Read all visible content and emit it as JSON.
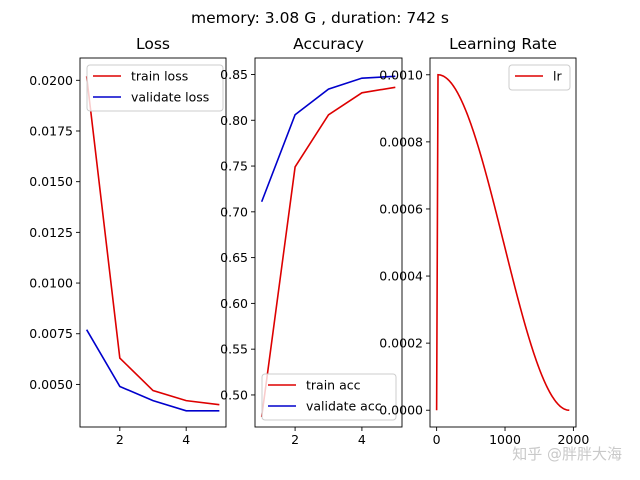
{
  "figure": {
    "suptitle": "memory: 3.08 G , duration: 742 s",
    "watermark": "知乎 @胖胖大海"
  },
  "chart_data": [
    {
      "type": "line",
      "title": "Loss",
      "xlabel": "",
      "ylabel": "",
      "xlim": [
        0.8,
        5.2
      ],
      "ylim": [
        0.0029,
        0.0211
      ],
      "xticks": [
        2,
        4
      ],
      "xtick_labels": [
        "2",
        "4"
      ],
      "yticks": [
        0.005,
        0.0075,
        0.01,
        0.0125,
        0.015,
        0.0175,
        0.02
      ],
      "ytick_labels": [
        "0.0050",
        "0.0075",
        "0.0100",
        "0.0125",
        "0.0150",
        "0.0175",
        "0.0200"
      ],
      "legend_position": "top-right",
      "series": [
        {
          "name": "train loss",
          "color": "#dd0000",
          "x": [
            1,
            2,
            3,
            4,
            5
          ],
          "y": [
            0.0202,
            0.0063,
            0.0047,
            0.0042,
            0.004
          ]
        },
        {
          "name": "validate loss",
          "color": "#0000cc",
          "x": [
            1,
            2,
            3,
            4,
            5
          ],
          "y": [
            0.0077,
            0.0049,
            0.0042,
            0.0037,
            0.0037
          ]
        }
      ]
    },
    {
      "type": "line",
      "title": "Accuracy",
      "xlabel": "",
      "ylabel": "",
      "xlim": [
        0.8,
        5.2
      ],
      "ylim": [
        0.465,
        0.868
      ],
      "xticks": [
        2,
        4
      ],
      "xtick_labels": [
        "2",
        "4"
      ],
      "yticks": [
        0.5,
        0.55,
        0.6,
        0.65,
        0.7,
        0.75,
        0.8,
        0.85
      ],
      "ytick_labels": [
        "0.50",
        "0.55",
        "0.60",
        "0.65",
        "0.70",
        "0.75",
        "0.80",
        "0.85"
      ],
      "legend_position": "bottom-right",
      "series": [
        {
          "name": "train acc",
          "color": "#dd0000",
          "x": [
            1,
            2,
            3,
            4,
            5
          ],
          "y": [
            0.476,
            0.749,
            0.806,
            0.83,
            0.836
          ]
        },
        {
          "name": "validate acc",
          "color": "#0000cc",
          "x": [
            1,
            2,
            3,
            4,
            5
          ],
          "y": [
            0.711,
            0.806,
            0.834,
            0.846,
            0.848
          ]
        }
      ]
    },
    {
      "type": "line",
      "title": "Learning Rate",
      "xlabel": "",
      "ylabel": "",
      "xlim": [
        -97,
        2038
      ],
      "ylim": [
        -5e-05,
        0.00105
      ],
      "xticks": [
        0,
        1000,
        2000
      ],
      "xtick_labels": [
        "0",
        "1000",
        "2000"
      ],
      "yticks": [
        0,
        0.0002,
        0.0004,
        0.0006,
        0.0008,
        0.001
      ],
      "ytick_labels": [
        "0.0000",
        "0.0002",
        "0.0004",
        "0.0006",
        "0.0008",
        "0.0010"
      ],
      "legend_position": "top-right",
      "series": [
        {
          "name": "lr",
          "color": "#dd0000",
          "schedule": "linear warmup then cosine decay",
          "max_lr": 0.001,
          "warmup_steps": 20,
          "total_steps": 1940
        }
      ]
    }
  ]
}
